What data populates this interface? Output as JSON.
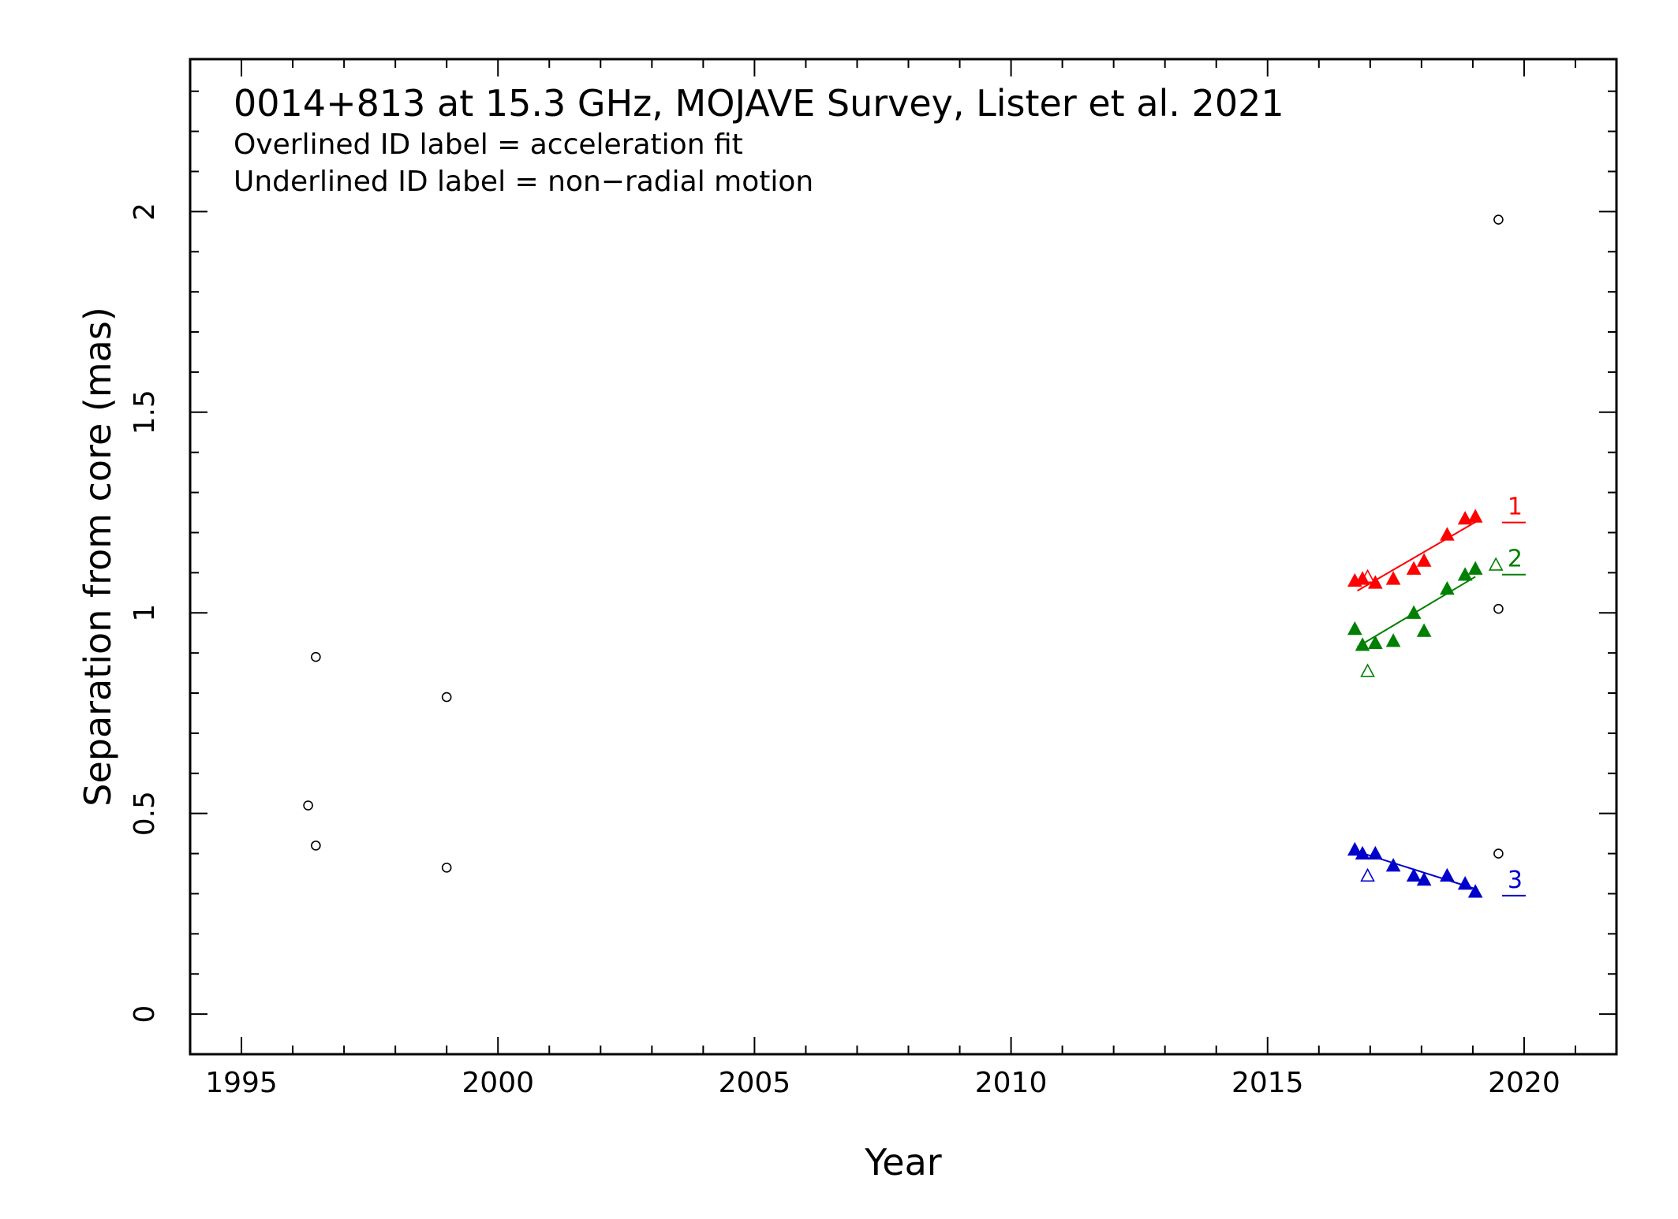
{
  "chart_data": {
    "type": "scatter",
    "title": "0014+813 at 15.3 GHz, MOJAVE Survey, Lister et al. 2021",
    "notes": [
      "Overlined ID label = acceleration fit",
      "Underlined ID label = non−radial motion"
    ],
    "xlabel": "Year",
    "ylabel": "Separation from core (mas)",
    "xlim": [
      1994,
      2021.8
    ],
    "ylim": [
      -0.1,
      2.38
    ],
    "x_ticks": [
      1995,
      2000,
      2005,
      2010,
      2015,
      2020
    ],
    "x_tick_labels": [
      "1995",
      "2000",
      "2005",
      "2010",
      "2015",
      "2020"
    ],
    "y_ticks": [
      0,
      0.5,
      1,
      1.5,
      2
    ],
    "y_tick_labels": [
      "0",
      "0.5",
      "1",
      "1.5",
      "2"
    ],
    "grid": false,
    "unassigned_points": {
      "color": "#000000",
      "marker": "open-circle",
      "points": [
        [
          1996.3,
          0.52
        ],
        [
          1996.45,
          0.89
        ],
        [
          1996.45,
          0.42
        ],
        [
          1999.0,
          0.79
        ],
        [
          1999.0,
          0.365
        ],
        [
          2019.5,
          1.98
        ],
        [
          2019.5,
          1.01
        ],
        [
          2019.5,
          0.4
        ]
      ]
    },
    "components": [
      {
        "id": "1",
        "color": "#ff0000",
        "underlined": true,
        "label_pos": [
          2019.6,
          1.245
        ],
        "fit": [
          [
            2016.75,
            1.055
          ],
          [
            2019.1,
            1.23
          ]
        ],
        "points": [
          [
            2016.7,
            1.08
          ],
          [
            2016.85,
            1.085
          ],
          [
            2017.1,
            1.075
          ],
          [
            2017.45,
            1.085
          ],
          [
            2017.85,
            1.11
          ],
          [
            2018.05,
            1.13
          ],
          [
            2018.5,
            1.195
          ],
          [
            2018.85,
            1.235
          ],
          [
            2019.05,
            1.24
          ]
        ],
        "open_points": [
          [
            2016.95,
            1.09
          ]
        ]
      },
      {
        "id": "2",
        "color": "#008000",
        "underlined": true,
        "label_pos": [
          2019.6,
          1.115
        ],
        "fit": [
          [
            2016.75,
            0.915
          ],
          [
            2019.05,
            1.09
          ]
        ],
        "points": [
          [
            2016.7,
            0.96
          ],
          [
            2016.85,
            0.92
          ],
          [
            2017.1,
            0.925
          ],
          [
            2017.45,
            0.93
          ],
          [
            2017.85,
            1.0
          ],
          [
            2018.05,
            0.955
          ],
          [
            2018.5,
            1.06
          ],
          [
            2018.85,
            1.095
          ],
          [
            2019.05,
            1.11
          ]
        ],
        "open_points": [
          [
            2016.95,
            0.855
          ],
          [
            2019.45,
            1.12
          ]
        ]
      },
      {
        "id": "3",
        "color": "#0000cc",
        "underlined": true,
        "label_pos": [
          2019.6,
          0.315
        ],
        "fit": [
          [
            2016.75,
            0.405
          ],
          [
            2019.1,
            0.31
          ]
        ],
        "points": [
          [
            2016.7,
            0.41
          ],
          [
            2016.85,
            0.4
          ],
          [
            2017.1,
            0.4
          ],
          [
            2017.45,
            0.37
          ],
          [
            2017.85,
            0.345
          ],
          [
            2018.05,
            0.335
          ],
          [
            2018.5,
            0.345
          ],
          [
            2018.85,
            0.325
          ],
          [
            2019.05,
            0.305
          ]
        ],
        "open_points": [
          [
            2016.95,
            0.345
          ]
        ]
      }
    ]
  }
}
